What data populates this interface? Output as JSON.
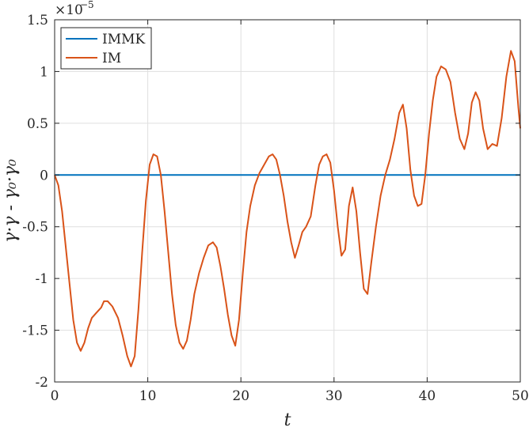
{
  "chart_data": {
    "type": "line",
    "xlabel": "t",
    "ylabel": "γ·γ - γ₀·γ₀",
    "exponent_base": "×10",
    "exponent_power": "−5",
    "xlim": [
      0,
      50
    ],
    "ylim": [
      -2.0,
      1.5
    ],
    "xticks": [
      0,
      10,
      20,
      30,
      40,
      50
    ],
    "xtick_labels": [
      "0",
      "10",
      "20",
      "30",
      "40",
      "50"
    ],
    "yticks": [
      -2.0,
      -1.5,
      -1.0,
      -0.5,
      0,
      0.5,
      1.0,
      1.5
    ],
    "ytick_labels": [
      "-2",
      "-1.5",
      "-1",
      "-0.5",
      "0",
      "0.5",
      "1",
      "1.5"
    ],
    "grid": true,
    "legend_position": "top-left",
    "series": [
      {
        "name": "IMMK",
        "color": "#0072BD",
        "x": [
          0,
          50
        ],
        "y": [
          0,
          0
        ]
      },
      {
        "name": "IM",
        "color": "#D95319",
        "x": [
          0,
          0.4,
          0.8,
          1.2,
          1.6,
          2.0,
          2.4,
          2.8,
          3.2,
          3.6,
          4.0,
          4.5,
          5.0,
          5.3,
          5.7,
          6.2,
          6.8,
          7.3,
          7.8,
          8.2,
          8.6,
          9.0,
          9.4,
          9.8,
          10.2,
          10.6,
          11.0,
          11.4,
          11.8,
          12.2,
          12.6,
          13.0,
          13.4,
          13.8,
          14.2,
          14.6,
          15.0,
          15.5,
          16.0,
          16.5,
          17.0,
          17.4,
          17.8,
          18.2,
          18.6,
          19.0,
          19.4,
          19.8,
          20.2,
          20.6,
          21.0,
          21.5,
          22.0,
          22.5,
          23.0,
          23.4,
          23.8,
          24.2,
          24.6,
          25.0,
          25.4,
          25.8,
          26.2,
          26.6,
          27.0,
          27.5,
          28.0,
          28.4,
          28.8,
          29.2,
          29.6,
          30.0,
          30.4,
          30.8,
          31.2,
          31.6,
          32.0,
          32.4,
          32.8,
          33.2,
          33.6,
          34.0,
          34.5,
          35.0,
          35.5,
          36.0,
          36.5,
          37.0,
          37.4,
          37.8,
          38.2,
          38.6,
          39.0,
          39.4,
          39.8,
          40.2,
          40.6,
          41.0,
          41.5,
          42.0,
          42.5,
          43.0,
          43.5,
          44.0,
          44.4,
          44.8,
          45.2,
          45.6,
          46.0,
          46.5,
          47.0,
          47.5,
          48.0,
          48.5,
          49.0,
          49.4,
          49.8,
          50.0
        ],
        "y": [
          0,
          -0.1,
          -0.35,
          -0.7,
          -1.05,
          -1.4,
          -1.62,
          -1.7,
          -1.62,
          -1.48,
          -1.38,
          -1.33,
          -1.28,
          -1.22,
          -1.22,
          -1.27,
          -1.38,
          -1.55,
          -1.75,
          -1.85,
          -1.75,
          -1.3,
          -0.75,
          -0.25,
          0.1,
          0.2,
          0.18,
          0.0,
          -0.35,
          -0.75,
          -1.15,
          -1.45,
          -1.62,
          -1.68,
          -1.6,
          -1.4,
          -1.15,
          -0.95,
          -0.8,
          -0.68,
          -0.65,
          -0.7,
          -0.88,
          -1.1,
          -1.35,
          -1.55,
          -1.65,
          -1.4,
          -0.95,
          -0.55,
          -0.3,
          -0.1,
          0.02,
          0.1,
          0.18,
          0.2,
          0.15,
          0.0,
          -0.2,
          -0.45,
          -0.65,
          -0.8,
          -0.68,
          -0.55,
          -0.5,
          -0.4,
          -0.1,
          0.1,
          0.18,
          0.2,
          0.12,
          -0.15,
          -0.5,
          -0.78,
          -0.72,
          -0.3,
          -0.12,
          -0.35,
          -0.75,
          -1.1,
          -1.15,
          -0.85,
          -0.5,
          -0.2,
          0.0,
          0.15,
          0.35,
          0.6,
          0.68,
          0.45,
          0.05,
          -0.2,
          -0.3,
          -0.28,
          0.0,
          0.4,
          0.72,
          0.95,
          1.05,
          1.02,
          0.9,
          0.6,
          0.35,
          0.25,
          0.4,
          0.7,
          0.8,
          0.72,
          0.45,
          0.25,
          0.3,
          0.28,
          0.55,
          0.95,
          1.2,
          1.1,
          0.65,
          0.45
        ]
      }
    ]
  }
}
